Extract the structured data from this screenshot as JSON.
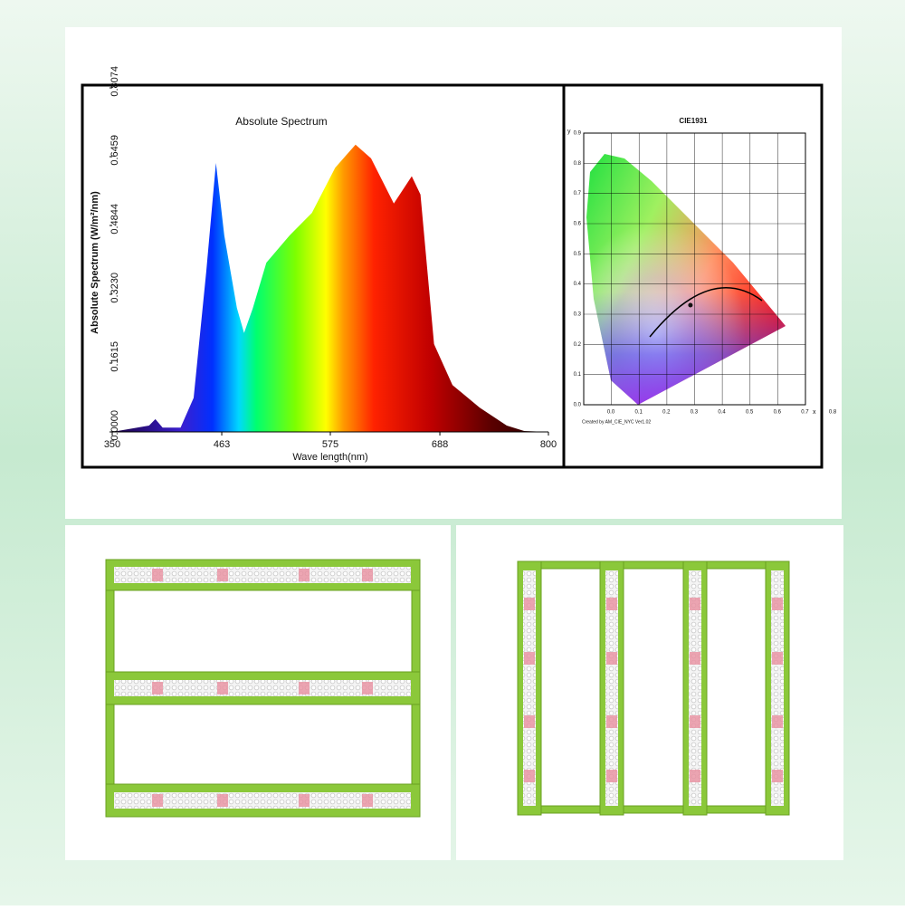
{
  "chart_data": [
    {
      "type": "area",
      "title": "Absolute Spectrum",
      "y_label": "Absolute Spectrum (W/m²/nm)",
      "x_label": "Wave length(nm)",
      "x": [
        350,
        388,
        394.5,
        402,
        420.5,
        434,
        447,
        457,
        465.6,
        478.6,
        486,
        495,
        509,
        533,
        556,
        580,
        601,
        617,
        640.5,
        659,
        668,
        682,
        701,
        729,
        757,
        775,
        800
      ],
      "values": [
        0,
        0.015,
        0.03,
        0.01,
        0.01,
        0.08,
        0.376,
        0.631,
        0.461,
        0.291,
        0.232,
        0.29,
        0.397,
        0.461,
        0.514,
        0.62,
        0.674,
        0.642,
        0.536,
        0.6,
        0.557,
        0.206,
        0.11,
        0.057,
        0.015,
        0.002,
        0
      ],
      "xlim": [
        350,
        800
      ],
      "xticks": [
        350,
        463,
        575,
        688,
        800
      ],
      "ylim": [
        0,
        0.8074
      ],
      "yticks": [
        {
          "value": 0,
          "label": "0.0000"
        },
        0.1615,
        {
          "value": 0.323,
          "label": "0.3230"
        },
        0.4844,
        0.6459,
        0.8074
      ]
    },
    {
      "type": "scatter",
      "title": "CIE1931",
      "note": "Created by AM_CIE_NYC Ver1.02",
      "x_label": "x",
      "y_label": "y",
      "x": [
        0.385
      ],
      "values": [
        0.33
      ],
      "color": "#111111",
      "xlim": [
        0,
        0.8
      ],
      "xticks": [
        {
          "value": 0,
          "label": "0.0"
        },
        0.1,
        0.2,
        0.3,
        0.4,
        0.5,
        0.6,
        0.7,
        0.8
      ],
      "ylim": [
        0,
        0.9
      ],
      "yticks": [
        {
          "value": 0,
          "label": "0.0"
        },
        0.1,
        0.2,
        0.3,
        0.4,
        0.5,
        0.6,
        0.7,
        0.8,
        0.9
      ],
      "grid": true
    }
  ]
}
